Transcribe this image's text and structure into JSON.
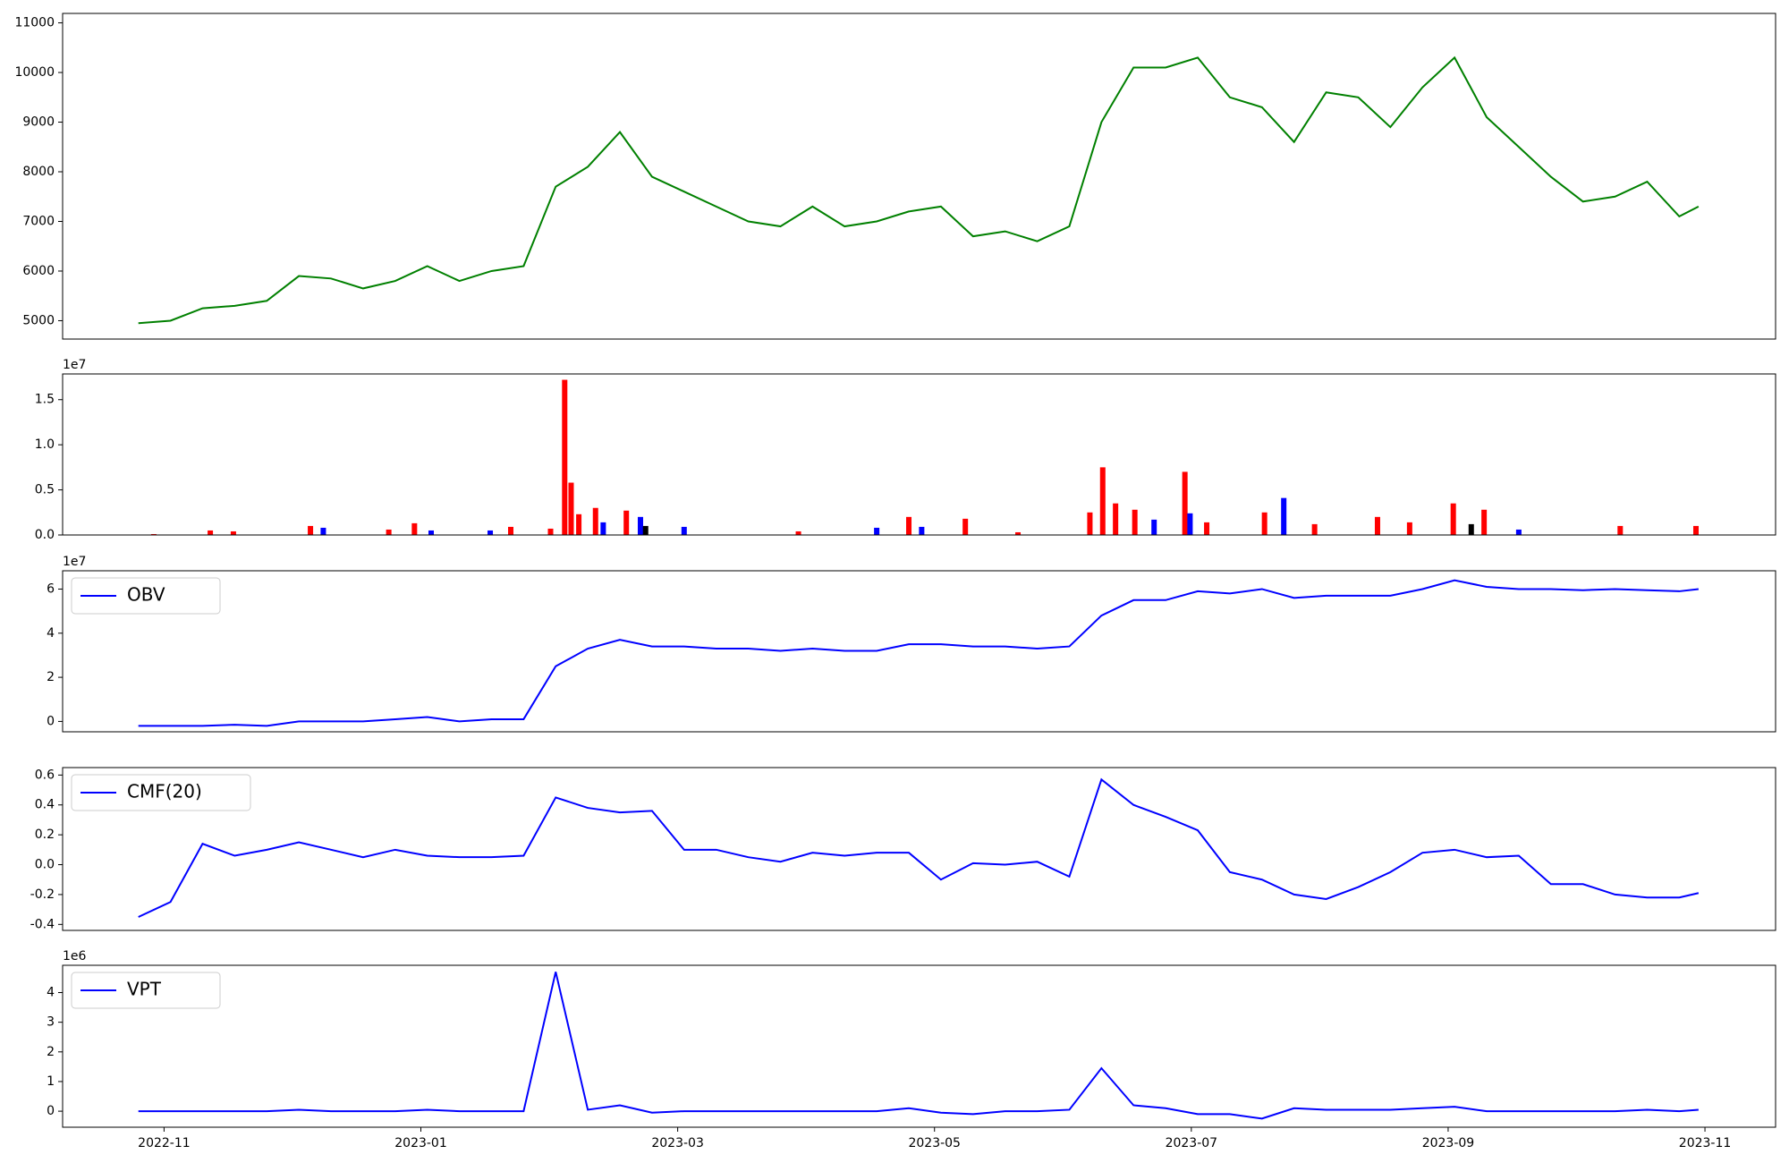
{
  "chart_data": [
    {
      "type": "line",
      "color": "#008000",
      "x": [
        -0.2,
        0.05,
        0.3,
        0.55,
        0.8,
        1.05,
        1.3,
        1.55,
        1.8,
        2.05,
        2.3,
        2.55,
        2.8,
        3.05,
        3.3,
        3.55,
        3.8,
        4.05,
        4.3,
        4.55,
        4.8,
        5.05,
        5.3,
        5.55,
        5.8,
        6.05,
        6.3,
        6.55,
        6.8,
        7.05,
        7.3,
        7.55,
        7.8,
        8.05,
        8.3,
        8.55,
        8.8,
        9.05,
        9.3,
        9.55,
        9.8,
        10.05,
        10.3,
        10.55,
        10.8,
        11.05,
        11.3,
        11.55,
        11.8,
        11.95
      ],
      "values": [
        4950,
        5000,
        5250,
        5300,
        5400,
        5900,
        5850,
        5650,
        5800,
        6100,
        5800,
        6000,
        6100,
        7700,
        8100,
        8800,
        7900,
        7600,
        7300,
        7000,
        6900,
        7300,
        6900,
        7000,
        7200,
        7300,
        6700,
        6800,
        6600,
        6900,
        9000,
        10100,
        10100,
        10300,
        9500,
        9300,
        8600,
        9600,
        9500,
        8900,
        9700,
        10300,
        9100,
        8500,
        7900,
        7400,
        7500,
        7800,
        7100,
        7300
      ],
      "xlim": [
        -0.79,
        12.55
      ],
      "ylim": [
        4630,
        11190
      ],
      "yticks": [
        5000,
        6000,
        7000,
        8000,
        9000,
        10000,
        11000
      ]
    },
    {
      "type": "bar",
      "y_offset_text": "1e7",
      "x": [
        -0.08,
        0.36,
        0.54,
        1.14,
        1.24,
        1.75,
        1.95,
        2.08,
        2.54,
        2.7,
        3.01,
        3.12,
        3.17,
        3.23,
        3.36,
        3.42,
        3.6,
        3.71,
        3.75,
        4.05,
        4.94,
        5.55,
        5.8,
        5.9,
        6.24,
        6.65,
        7.21,
        7.31,
        7.41,
        7.56,
        7.71,
        7.95,
        7.99,
        8.12,
        8.57,
        8.72,
        8.96,
        9.45,
        9.7,
        10.04,
        10.18,
        10.28,
        10.55,
        11.34,
        11.93
      ],
      "values": [
        100000,
        500000,
        400000,
        1000000,
        800000,
        600000,
        1300000,
        500000,
        500000,
        900000,
        700000,
        17200000,
        5800000,
        2300000,
        3000000,
        1400000,
        2700000,
        2000000,
        1000000,
        900000,
        400000,
        800000,
        2000000,
        900000,
        1800000,
        300000,
        2500000,
        7500000,
        3500000,
        2800000,
        1700000,
        7000000,
        2400000,
        1400000,
        2500000,
        4100000,
        1200000,
        2000000,
        1400000,
        3500000,
        1200000,
        2800000,
        600000,
        1000000,
        1000000
      ],
      "colors": [
        "#ff0000",
        "#ff0000",
        "#ff0000",
        "#ff0000",
        "#0000ff",
        "#ff0000",
        "#ff0000",
        "#0000ff",
        "#0000ff",
        "#ff0000",
        "#ff0000",
        "#ff0000",
        "#ff0000",
        "#ff0000",
        "#ff0000",
        "#0000ff",
        "#ff0000",
        "#0000ff",
        "#000000",
        "#0000ff",
        "#ff0000",
        "#0000ff",
        "#ff0000",
        "#0000ff",
        "#ff0000",
        "#ff0000",
        "#ff0000",
        "#ff0000",
        "#ff0000",
        "#ff0000",
        "#0000ff",
        "#ff0000",
        "#0000ff",
        "#ff0000",
        "#ff0000",
        "#0000ff",
        "#ff0000",
        "#ff0000",
        "#ff0000",
        "#ff0000",
        "#000000",
        "#ff0000",
        "#0000ff",
        "#ff0000",
        "#ff0000"
      ],
      "xlim": [
        -0.79,
        12.55
      ],
      "ylim": [
        0,
        17850000
      ],
      "yticks": [
        {
          "value": 0,
          "label": "0.0"
        },
        {
          "value": 5000000,
          "label": "0.5"
        },
        {
          "value": 10000000,
          "label": "1.0"
        },
        {
          "value": 15000000,
          "label": "1.5"
        }
      ]
    },
    {
      "type": "line",
      "y_offset_text": "1e7",
      "legend": "upper left",
      "series": [
        {
          "name": "OBV",
          "color": "#0000ff",
          "x": [
            -0.2,
            0.05,
            0.3,
            0.55,
            0.8,
            1.05,
            1.3,
            1.55,
            1.8,
            2.05,
            2.3,
            2.55,
            2.8,
            3.05,
            3.3,
            3.55,
            3.8,
            4.05,
            4.3,
            4.55,
            4.8,
            5.05,
            5.3,
            5.55,
            5.8,
            6.05,
            6.3,
            6.55,
            6.8,
            7.05,
            7.3,
            7.55,
            7.8,
            8.05,
            8.3,
            8.55,
            8.8,
            9.05,
            9.3,
            9.55,
            9.8,
            10.05,
            10.3,
            10.55,
            10.8,
            11.05,
            11.3,
            11.55,
            11.8,
            11.95
          ],
          "values": [
            -2000000,
            -2000000,
            -2000000,
            -1500000,
            -2000000,
            0,
            0,
            0,
            1000000,
            2000000,
            0,
            1000000,
            1000000,
            25000000,
            33000000,
            37000000,
            34000000,
            34000000,
            33000000,
            33000000,
            32000000,
            33000000,
            32000000,
            32000000,
            35000000,
            35000000,
            34000000,
            34000000,
            33000000,
            34000000,
            48000000,
            55000000,
            55000000,
            59000000,
            58000000,
            60000000,
            56000000,
            57000000,
            57000000,
            57000000,
            60000000,
            64000000,
            61000000,
            60000000,
            60000000,
            59500000,
            60000000,
            59500000,
            59000000,
            60000000
          ]
        }
      ],
      "xlim": [
        -0.79,
        12.55
      ],
      "ylim": [
        -4700000,
        68300000
      ],
      "yticks": [
        0,
        {
          "value": 20000000,
          "label": "2"
        },
        {
          "value": 40000000,
          "label": "4"
        },
        {
          "value": 60000000,
          "label": "6"
        }
      ]
    },
    {
      "type": "line",
      "legend": "upper left",
      "series": [
        {
          "name": "CMF(20)",
          "color": "#0000ff",
          "x": [
            -0.2,
            0.05,
            0.3,
            0.55,
            0.8,
            1.05,
            1.3,
            1.55,
            1.8,
            2.05,
            2.3,
            2.55,
            2.8,
            3.05,
            3.3,
            3.55,
            3.8,
            4.05,
            4.3,
            4.55,
            4.8,
            5.05,
            5.3,
            5.55,
            5.8,
            6.05,
            6.3,
            6.55,
            6.8,
            7.05,
            7.3,
            7.55,
            7.8,
            8.05,
            8.3,
            8.55,
            8.8,
            9.05,
            9.3,
            9.55,
            9.8,
            10.05,
            10.3,
            10.55,
            10.8,
            11.05,
            11.3,
            11.55,
            11.8,
            11.95
          ],
          "values": [
            -0.35,
            -0.25,
            0.14,
            0.06,
            0.1,
            0.15,
            0.1,
            0.05,
            0.1,
            0.06,
            0.05,
            0.05,
            0.06,
            0.45,
            0.38,
            0.35,
            0.36,
            0.1,
            0.1,
            0.05,
            0.02,
            0.08,
            0.06,
            0.08,
            0.08,
            -0.1,
            0.01,
            0.0,
            0.02,
            -0.08,
            0.57,
            0.4,
            0.32,
            0.23,
            -0.05,
            -0.1,
            -0.2,
            -0.23,
            -0.15,
            -0.05,
            0.08,
            0.1,
            0.05,
            0.06,
            -0.13,
            -0.13,
            -0.2,
            -0.22,
            -0.22,
            -0.19
          ]
        }
      ],
      "xlim": [
        -0.79,
        12.55
      ],
      "ylim": [
        -0.44,
        0.65
      ],
      "yticks": [
        -0.4,
        -0.2,
        {
          "value": 0,
          "label": "0.0"
        },
        0.2,
        0.4,
        0.6
      ]
    },
    {
      "type": "line",
      "y_offset_text": "1e6",
      "legend": "upper left",
      "series": [
        {
          "name": "VPT",
          "color": "#0000ff",
          "x": [
            -0.2,
            0.05,
            0.3,
            0.55,
            0.8,
            1.05,
            1.3,
            1.55,
            1.8,
            2.05,
            2.3,
            2.55,
            2.8,
            3.05,
            3.3,
            3.55,
            3.8,
            4.05,
            4.3,
            4.55,
            4.8,
            5.05,
            5.3,
            5.55,
            5.8,
            6.05,
            6.3,
            6.55,
            6.8,
            7.05,
            7.3,
            7.55,
            7.8,
            8.05,
            8.3,
            8.55,
            8.8,
            9.05,
            9.3,
            9.55,
            9.8,
            10.05,
            10.3,
            10.55,
            10.8,
            11.05,
            11.3,
            11.55,
            11.8,
            11.95
          ],
          "values": [
            0,
            0,
            0,
            0,
            0,
            50000,
            0,
            0,
            0,
            50000,
            0,
            0,
            0,
            4700000,
            50000,
            200000,
            -50000,
            0,
            0,
            0,
            0,
            0,
            0,
            0,
            100000,
            -50000,
            -100000,
            0,
            0,
            50000,
            1450000,
            200000,
            100000,
            -100000,
            -100000,
            -250000,
            100000,
            50000,
            50000,
            50000,
            100000,
            150000,
            0,
            0,
            0,
            0,
            0,
            50000,
            0,
            50000
          ]
        }
      ],
      "xlim": [
        -0.79,
        12.55
      ],
      "ylim": [
        -540000,
        4920000
      ],
      "yticks": [
        0,
        {
          "value": 1000000,
          "label": "1"
        },
        {
          "value": 2000000,
          "label": "2"
        },
        {
          "value": 3000000,
          "label": "3"
        },
        {
          "value": 4000000,
          "label": "4"
        }
      ],
      "xticks": [
        {
          "value": 0,
          "label": "2022-11"
        },
        {
          "value": 2,
          "label": "2023-01"
        },
        {
          "value": 4,
          "label": "2023-03"
        },
        {
          "value": 6,
          "label": "2023-05"
        },
        {
          "value": 8,
          "label": "2023-07"
        },
        {
          "value": 10,
          "label": "2023-09"
        },
        {
          "value": 12,
          "label": "2023-11"
        }
      ]
    }
  ]
}
